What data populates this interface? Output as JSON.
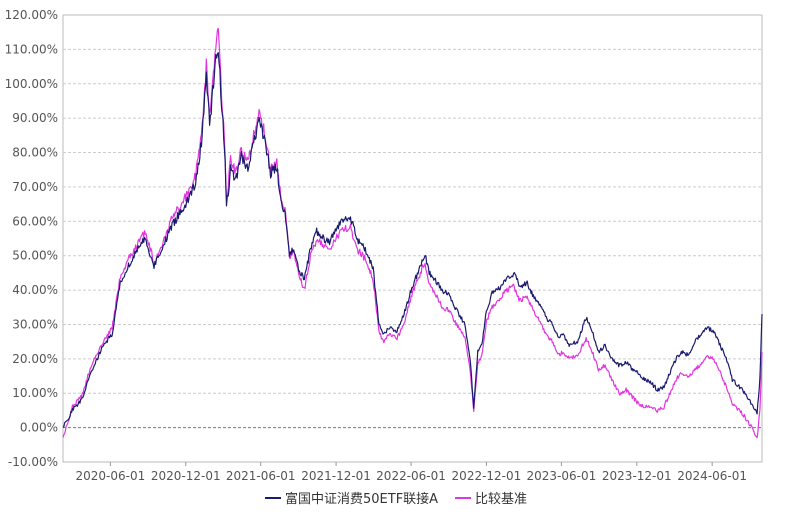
{
  "chart_data": {
    "type": "line",
    "y_axis": {
      "min": -10,
      "max": 120,
      "step": 10,
      "tick_labels": [
        "-10.00%",
        "0.00%",
        "10.00%",
        "20.00%",
        "30.00%",
        "40.00%",
        "50.00%",
        "60.00%",
        "70.00%",
        "80.00%",
        "90.00%",
        "100.00%",
        "110.00%",
        "120.00%"
      ]
    },
    "x_axis": {
      "start": "2020-02-07",
      "end": "2024-09-30",
      "tick_labels": [
        "2020-06-01",
        "2020-12-01",
        "2021-06-01",
        "2021-12-01",
        "2022-06-01",
        "2022-12-01",
        "2023-06-01",
        "2023-12-01",
        "2024-06-01"
      ]
    },
    "grid": true,
    "legend_position": "bottom",
    "series": [
      {
        "name": "富国中证消费50ETF联接A",
        "color": "#1a1a6e",
        "points": [
          [
            "2020-02-07",
            0
          ],
          [
            "2020-03-01",
            5
          ],
          [
            "2020-03-23",
            8
          ],
          [
            "2020-04-15",
            16
          ],
          [
            "2020-05-15",
            24
          ],
          [
            "2020-06-05",
            27
          ],
          [
            "2020-06-25",
            42
          ],
          [
            "2020-07-15",
            47
          ],
          [
            "2020-08-05",
            52
          ],
          [
            "2020-08-25",
            55
          ],
          [
            "2020-09-15",
            47
          ],
          [
            "2020-10-05",
            52
          ],
          [
            "2020-10-25",
            58
          ],
          [
            "2020-11-15",
            62
          ],
          [
            "2020-12-05",
            66
          ],
          [
            "2020-12-25",
            71
          ],
          [
            "2021-01-10",
            85
          ],
          [
            "2021-01-20",
            103
          ],
          [
            "2021-01-28",
            88
          ],
          [
            "2021-02-10",
            105
          ],
          [
            "2021-02-18",
            111
          ],
          [
            "2021-02-26",
            94
          ],
          [
            "2021-03-05",
            82
          ],
          [
            "2021-03-10",
            64
          ],
          [
            "2021-03-20",
            75
          ],
          [
            "2021-04-01",
            72
          ],
          [
            "2021-04-15",
            79
          ],
          [
            "2021-05-01",
            75
          ],
          [
            "2021-05-15",
            83
          ],
          [
            "2021-05-28",
            89
          ],
          [
            "2021-06-10",
            84
          ],
          [
            "2021-06-25",
            74
          ],
          [
            "2021-07-10",
            76
          ],
          [
            "2021-07-20",
            66
          ],
          [
            "2021-07-30",
            62
          ],
          [
            "2021-08-10",
            50
          ],
          [
            "2021-08-20",
            52
          ],
          [
            "2021-09-01",
            46
          ],
          [
            "2021-09-15",
            43
          ],
          [
            "2021-09-30",
            52
          ],
          [
            "2021-10-15",
            57
          ],
          [
            "2021-11-01",
            55
          ],
          [
            "2021-11-15",
            54
          ],
          [
            "2021-12-01",
            58
          ],
          [
            "2021-12-20",
            61
          ],
          [
            "2022-01-05",
            61
          ],
          [
            "2022-01-20",
            55
          ],
          [
            "2022-02-10",
            52
          ],
          [
            "2022-03-01",
            46
          ],
          [
            "2022-03-15",
            30
          ],
          [
            "2022-03-25",
            27
          ],
          [
            "2022-04-10",
            29
          ],
          [
            "2022-04-28",
            28
          ],
          [
            "2022-05-15",
            33
          ],
          [
            "2022-06-01",
            40
          ],
          [
            "2022-06-20",
            46
          ],
          [
            "2022-07-05",
            50
          ],
          [
            "2022-07-15",
            45
          ],
          [
            "2022-07-30",
            43
          ],
          [
            "2022-08-15",
            40
          ],
          [
            "2022-09-01",
            39
          ],
          [
            "2022-09-20",
            34
          ],
          [
            "2022-10-10",
            30
          ],
          [
            "2022-10-24",
            18
          ],
          [
            "2022-10-31",
            6
          ],
          [
            "2022-11-10",
            22
          ],
          [
            "2022-11-20",
            24
          ],
          [
            "2022-12-01",
            34
          ],
          [
            "2022-12-15",
            39
          ],
          [
            "2023-01-05",
            41
          ],
          [
            "2023-01-20",
            43
          ],
          [
            "2023-02-05",
            45
          ],
          [
            "2023-02-20",
            41
          ],
          [
            "2023-03-10",
            42
          ],
          [
            "2023-03-25",
            38
          ],
          [
            "2023-04-10",
            36
          ],
          [
            "2023-04-25",
            32
          ],
          [
            "2023-05-10",
            30
          ],
          [
            "2023-05-25",
            26
          ],
          [
            "2023-06-05",
            27
          ],
          [
            "2023-06-20",
            24
          ],
          [
            "2023-07-10",
            25
          ],
          [
            "2023-07-31",
            32
          ],
          [
            "2023-08-15",
            28
          ],
          [
            "2023-08-30",
            22
          ],
          [
            "2023-09-15",
            24
          ],
          [
            "2023-10-01",
            20
          ],
          [
            "2023-10-20",
            18
          ],
          [
            "2023-11-05",
            19
          ],
          [
            "2023-11-20",
            17
          ],
          [
            "2023-12-05",
            16
          ],
          [
            "2023-12-20",
            14
          ],
          [
            "2024-01-05",
            13
          ],
          [
            "2024-01-20",
            11
          ],
          [
            "2024-02-05",
            12
          ],
          [
            "2024-02-20",
            16
          ],
          [
            "2024-03-05",
            20
          ],
          [
            "2024-03-20",
            22
          ],
          [
            "2024-04-05",
            21
          ],
          [
            "2024-04-20",
            25
          ],
          [
            "2024-05-05",
            27
          ],
          [
            "2024-05-20",
            29
          ],
          [
            "2024-06-05",
            28
          ],
          [
            "2024-06-20",
            24
          ],
          [
            "2024-07-05",
            20
          ],
          [
            "2024-07-20",
            14
          ],
          [
            "2024-08-05",
            12
          ],
          [
            "2024-08-20",
            10
          ],
          [
            "2024-09-05",
            7
          ],
          [
            "2024-09-18",
            4
          ],
          [
            "2024-09-25",
            14
          ],
          [
            "2024-09-30",
            33
          ]
        ]
      },
      {
        "name": "比较基准",
        "color": "#e036e0",
        "points": [
          [
            "2020-02-07",
            -3
          ],
          [
            "2020-03-01",
            6
          ],
          [
            "2020-03-23",
            9
          ],
          [
            "2020-04-15",
            18
          ],
          [
            "2020-05-15",
            25
          ],
          [
            "2020-06-05",
            29
          ],
          [
            "2020-06-25",
            44
          ],
          [
            "2020-07-15",
            49
          ],
          [
            "2020-08-05",
            53
          ],
          [
            "2020-08-25",
            57
          ],
          [
            "2020-09-15",
            48
          ],
          [
            "2020-10-05",
            53
          ],
          [
            "2020-10-25",
            60
          ],
          [
            "2020-11-15",
            64
          ],
          [
            "2020-12-05",
            68
          ],
          [
            "2020-12-25",
            73
          ],
          [
            "2021-01-10",
            88
          ],
          [
            "2021-01-20",
            106
          ],
          [
            "2021-01-28",
            90
          ],
          [
            "2021-02-10",
            109
          ],
          [
            "2021-02-18",
            117
          ],
          [
            "2021-02-26",
            97
          ],
          [
            "2021-03-05",
            84
          ],
          [
            "2021-03-10",
            66
          ],
          [
            "2021-03-20",
            78
          ],
          [
            "2021-04-01",
            74
          ],
          [
            "2021-04-15",
            81
          ],
          [
            "2021-05-01",
            77
          ],
          [
            "2021-05-15",
            85
          ],
          [
            "2021-05-28",
            91
          ],
          [
            "2021-06-10",
            86
          ],
          [
            "2021-06-25",
            75
          ],
          [
            "2021-07-10",
            77
          ],
          [
            "2021-07-20",
            67
          ],
          [
            "2021-07-30",
            63
          ],
          [
            "2021-08-10",
            50
          ],
          [
            "2021-08-20",
            51
          ],
          [
            "2021-09-01",
            45
          ],
          [
            "2021-09-15",
            40
          ],
          [
            "2021-09-30",
            50
          ],
          [
            "2021-10-15",
            55
          ],
          [
            "2021-11-01",
            53
          ],
          [
            "2021-11-15",
            52
          ],
          [
            "2021-12-01",
            55
          ],
          [
            "2021-12-20",
            58
          ],
          [
            "2022-01-05",
            58
          ],
          [
            "2022-01-20",
            52
          ],
          [
            "2022-02-10",
            49
          ],
          [
            "2022-03-01",
            43
          ],
          [
            "2022-03-15",
            28
          ],
          [
            "2022-03-25",
            25
          ],
          [
            "2022-04-10",
            27
          ],
          [
            "2022-04-28",
            26
          ],
          [
            "2022-05-15",
            30
          ],
          [
            "2022-06-01",
            38
          ],
          [
            "2022-06-20",
            44
          ],
          [
            "2022-07-05",
            48
          ],
          [
            "2022-07-15",
            42
          ],
          [
            "2022-07-30",
            39
          ],
          [
            "2022-08-15",
            35
          ],
          [
            "2022-09-01",
            34
          ],
          [
            "2022-09-20",
            30
          ],
          [
            "2022-10-10",
            26
          ],
          [
            "2022-10-24",
            15
          ],
          [
            "2022-10-31",
            5
          ],
          [
            "2022-11-10",
            19
          ],
          [
            "2022-11-20",
            21
          ],
          [
            "2022-12-01",
            31
          ],
          [
            "2022-12-15",
            35
          ],
          [
            "2023-01-05",
            38
          ],
          [
            "2023-01-20",
            40
          ],
          [
            "2023-02-05",
            41
          ],
          [
            "2023-02-20",
            37
          ],
          [
            "2023-03-10",
            38
          ],
          [
            "2023-03-25",
            34
          ],
          [
            "2023-04-10",
            31
          ],
          [
            "2023-04-25",
            27
          ],
          [
            "2023-05-10",
            25
          ],
          [
            "2023-05-25",
            21
          ],
          [
            "2023-06-05",
            22
          ],
          [
            "2023-06-20",
            20
          ],
          [
            "2023-07-10",
            21
          ],
          [
            "2023-07-31",
            26
          ],
          [
            "2023-08-15",
            22
          ],
          [
            "2023-08-30",
            17
          ],
          [
            "2023-09-15",
            18
          ],
          [
            "2023-10-01",
            14
          ],
          [
            "2023-10-20",
            10
          ],
          [
            "2023-11-05",
            11
          ],
          [
            "2023-11-20",
            9
          ],
          [
            "2023-12-05",
            7
          ],
          [
            "2023-12-20",
            6
          ],
          [
            "2024-01-05",
            6
          ],
          [
            "2024-01-20",
            5
          ],
          [
            "2024-02-05",
            6
          ],
          [
            "2024-02-20",
            10
          ],
          [
            "2024-03-05",
            14
          ],
          [
            "2024-03-20",
            16
          ],
          [
            "2024-04-05",
            15
          ],
          [
            "2024-04-20",
            17
          ],
          [
            "2024-05-05",
            18
          ],
          [
            "2024-05-20",
            21
          ],
          [
            "2024-06-05",
            20
          ],
          [
            "2024-06-20",
            16
          ],
          [
            "2024-07-05",
            12
          ],
          [
            "2024-07-20",
            7
          ],
          [
            "2024-08-05",
            5
          ],
          [
            "2024-08-20",
            3
          ],
          [
            "2024-09-05",
            0
          ],
          [
            "2024-09-18",
            -3
          ],
          [
            "2024-09-25",
            5
          ],
          [
            "2024-09-30",
            22
          ]
        ]
      }
    ]
  }
}
